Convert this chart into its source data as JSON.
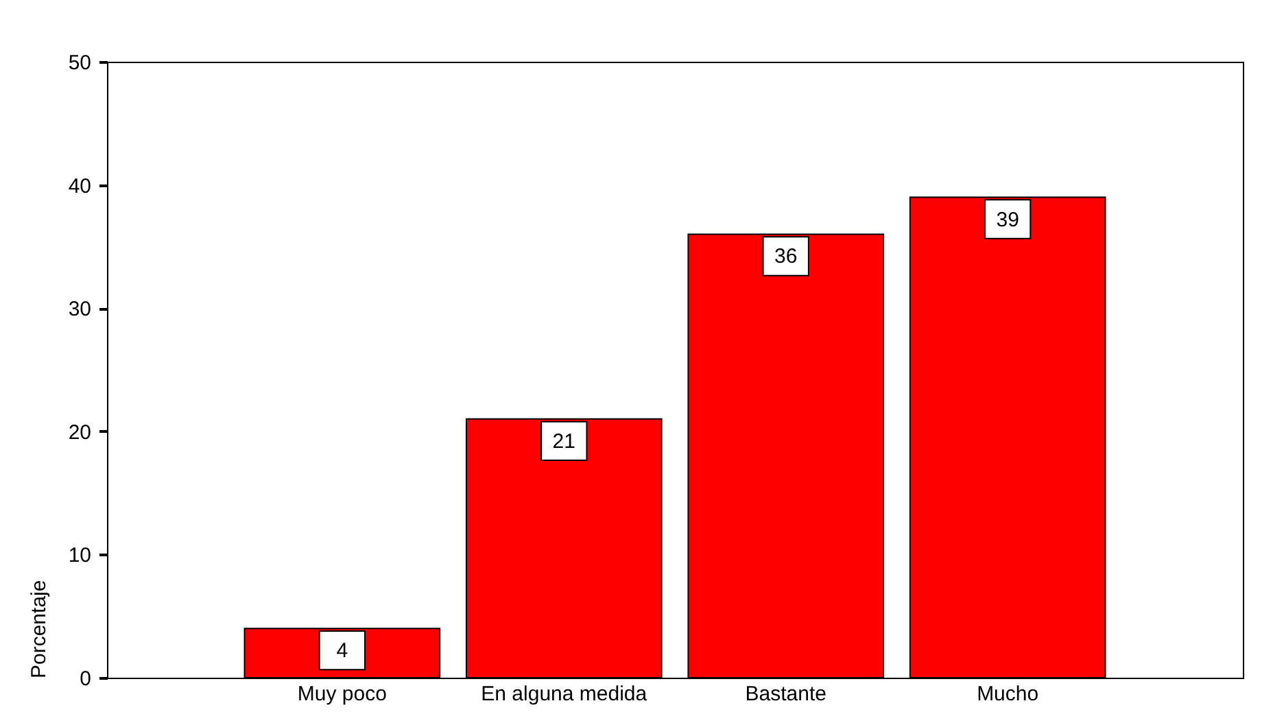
{
  "chart_data": {
    "type": "bar",
    "ylabel": "Porcentaje",
    "categories": [
      "Muy poco",
      "En alguna medida",
      "Bastante",
      "Mucho"
    ],
    "values": [
      4,
      21,
      36,
      39
    ],
    "data_labels": true,
    "color": "#ff0000",
    "ylim": [
      0,
      50
    ],
    "yticks": [
      0,
      10,
      20,
      30,
      40,
      50
    ],
    "grid": false
  }
}
